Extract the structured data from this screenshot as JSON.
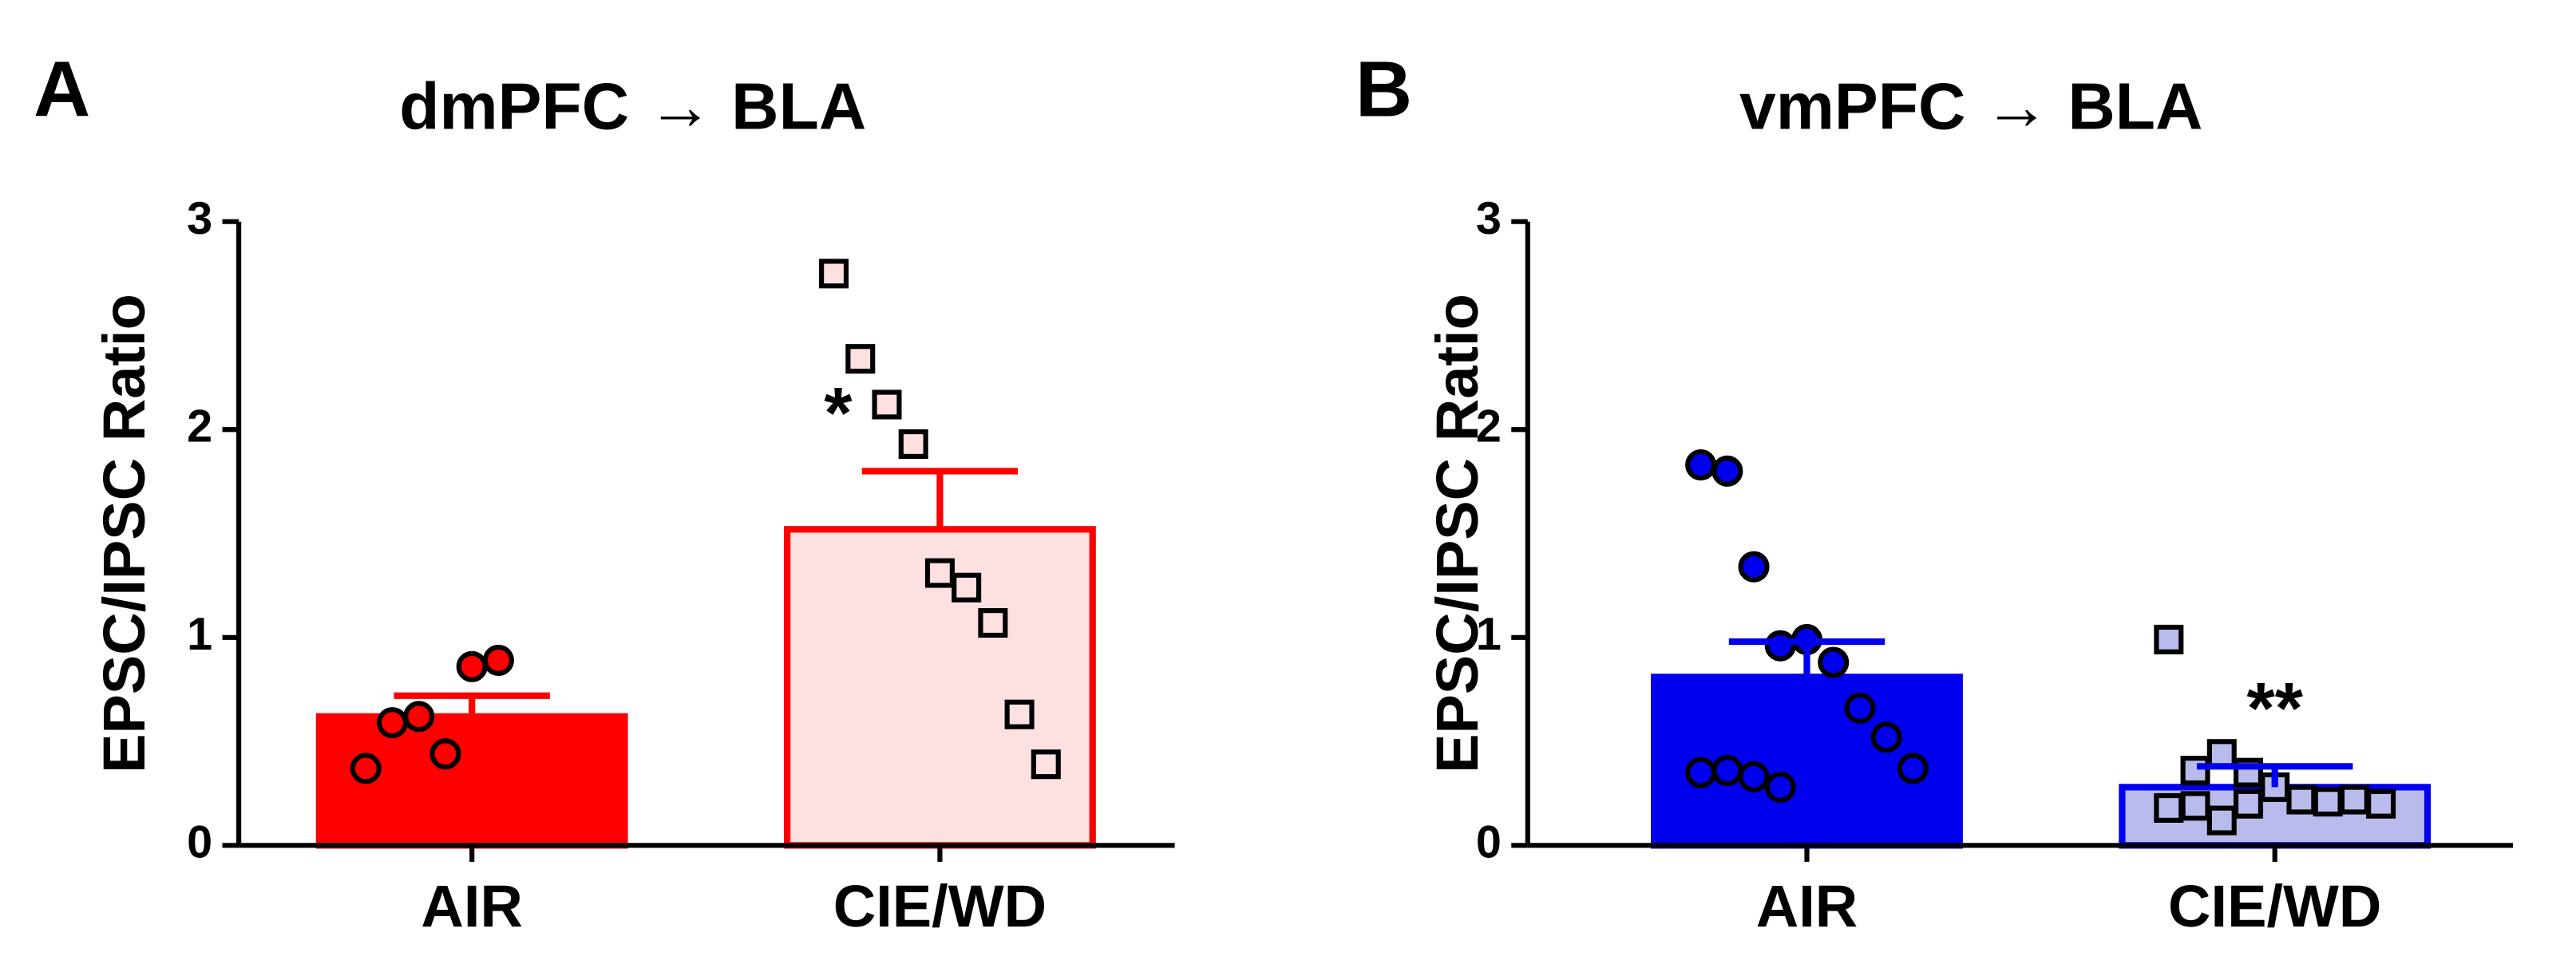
{
  "chart_data": [
    {
      "type": "bar",
      "panel_label": "A",
      "title": "dmPFC → BLA",
      "ylabel": "EPSC/IPSC Ratio",
      "categories": [
        "AIR",
        "CIE/WD"
      ],
      "values": [
        0.62,
        1.52
      ],
      "errors": [
        0.1,
        0.28
      ],
      "points": [
        [
          0.37,
          0.59,
          0.62,
          0.44,
          0.86,
          0.89
        ],
        [
          2.75,
          2.34,
          2.12,
          1.93,
          1.31,
          1.24,
          1.07,
          0.63,
          0.39
        ]
      ],
      "markers": [
        "circle",
        "square"
      ],
      "colors": [
        "#ff0000",
        "#fde0e0"
      ],
      "edge_colors": [
        "#ff0000",
        "#ff0000"
      ],
      "point_colors": [
        "#ff0000",
        "#fde0e0"
      ],
      "significance": [
        null,
        "*"
      ],
      "ylim": [
        0,
        3
      ],
      "yticks": [
        0,
        1,
        2,
        3
      ]
    },
    {
      "type": "bar",
      "panel_label": "B",
      "title": "vmPFC → BLA",
      "ylabel": "EPSC/IPSC Ratio",
      "categories": [
        "AIR",
        "CIE/WD"
      ],
      "values": [
        0.81,
        0.28
      ],
      "errors": [
        0.17,
        0.1
      ],
      "points": [
        [
          1.83,
          1.8,
          1.34,
          0.96,
          0.99,
          0.88,
          0.66,
          0.52,
          0.37,
          0.35,
          0.36,
          0.33,
          0.28
        ],
        [
          0.99,
          0.36,
          0.44,
          0.35,
          0.28,
          0.22,
          0.21,
          0.22,
          0.2,
          0.18,
          0.19,
          0.12,
          0.2
        ]
      ],
      "markers": [
        "circle",
        "square"
      ],
      "colors": [
        "#0000ee",
        "#b8bbeb"
      ],
      "edge_colors": [
        "#0000ee",
        "#0000ee"
      ],
      "point_colors": [
        "#0000ee",
        "#b8bbeb"
      ],
      "significance": [
        null,
        "**"
      ],
      "ylim": [
        0,
        3
      ],
      "yticks": [
        0,
        1,
        2,
        3
      ]
    }
  ]
}
